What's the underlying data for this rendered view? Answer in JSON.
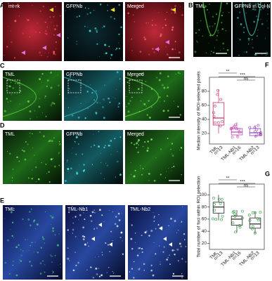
{
  "panels": {
    "A": {
      "letter": "A",
      "labels": [
        "mt-rk",
        "GFPNb",
        "Merged"
      ]
    },
    "B": {
      "letter": "B",
      "labels": [
        "TML",
        "GFPNb in Col-Nb2"
      ]
    },
    "C": {
      "letter": "C",
      "labels": [
        "TML",
        "GFPNb",
        "Merged"
      ]
    },
    "D": {
      "letter": "D",
      "labels": [
        "TML",
        "GFPNb",
        "Merged"
      ]
    },
    "E": {
      "letter": "E",
      "labels": [
        "TML",
        "TML-Nb1",
        "TML-Nb2"
      ]
    }
  },
  "chart_data": [
    {
      "type": "box",
      "letter": "F",
      "y_label": "Median intensity of ROI-selected pixels",
      "categories": [
        "TML",
        "TML-Nb1",
        "TML-Nb2"
      ],
      "n_labels": [
        "n=13",
        "n=16",
        "n=13"
      ],
      "colors": [
        "#c0306a",
        "#c040b0",
        "#9040b0"
      ],
      "q1": [
        32,
        18,
        17
      ],
      "median": [
        42,
        22,
        21
      ],
      "q3": [
        64,
        27,
        27
      ],
      "whislo": [
        20,
        14,
        14
      ],
      "whishi": [
        82,
        36,
        32
      ],
      "ylim": [
        5,
        100
      ],
      "yticks": [
        20,
        40,
        60,
        80
      ],
      "significance": [
        "**",
        "***",
        "ns"
      ]
    },
    {
      "type": "box",
      "letter": "G",
      "y_label": "Total number of foci within ROI selection",
      "categories": [
        "TML",
        "TML-Nb1",
        "TML-Nb2"
      ],
      "n_labels": [
        "n=13",
        "n=16",
        "n=13"
      ],
      "colors": [
        "#2a9a3a",
        "#2a9a3a",
        "#2a9a3a"
      ],
      "q1": [
        70,
        50,
        45
      ],
      "median": [
        80,
        60,
        52
      ],
      "q3": [
        88,
        65,
        62
      ],
      "whislo": [
        58,
        38,
        36
      ],
      "whishi": [
        100,
        75,
        72
      ],
      "ylim": [
        10,
        118
      ],
      "yticks": [
        20,
        40,
        60,
        80,
        100
      ],
      "significance": [
        "**",
        "***",
        "ns"
      ]
    }
  ]
}
